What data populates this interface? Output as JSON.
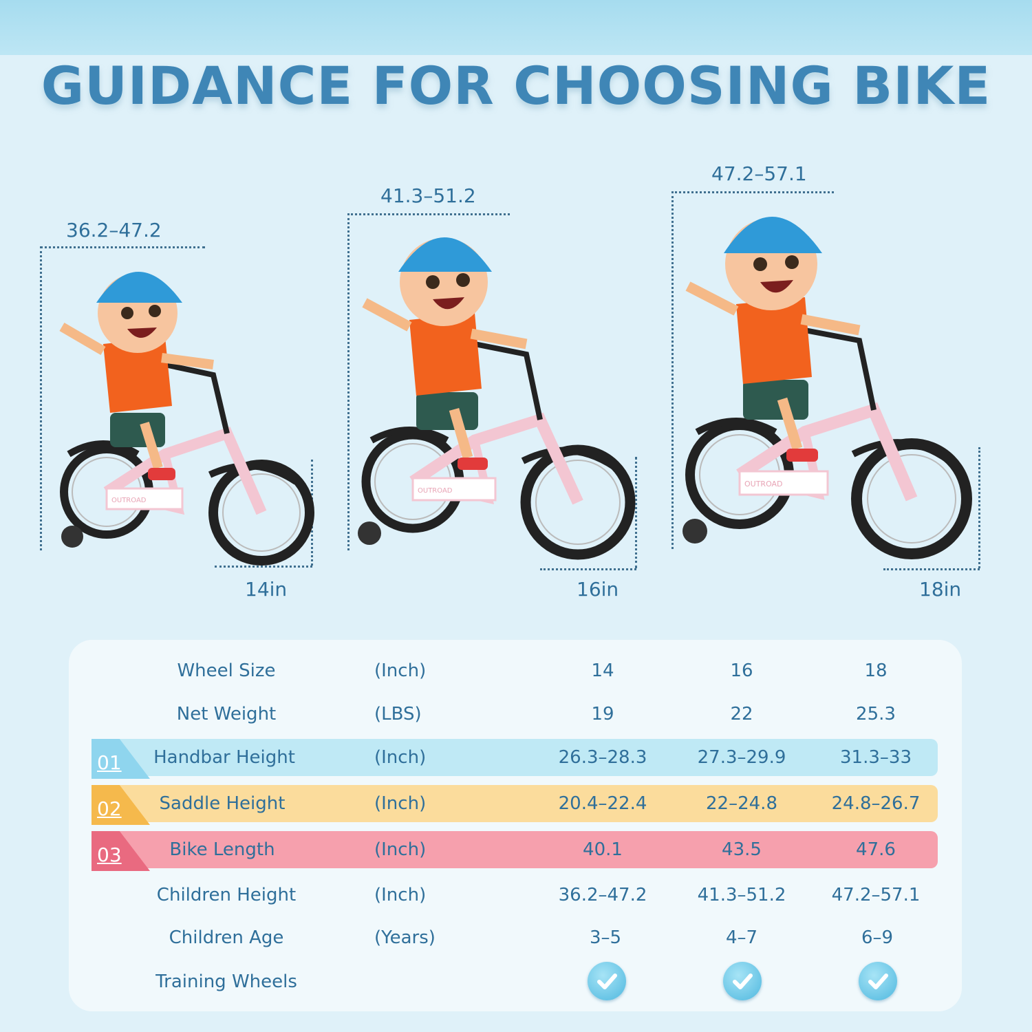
{
  "title": "GUIDANCE FOR CHOOSING BIKE",
  "colors": {
    "accent": "#3f86b6",
    "band_01": "#bfe9f5",
    "band_02": "#fbdc9c",
    "band_03": "#f6a0ad"
  },
  "figures": [
    {
      "height_range": "36.2–47.2",
      "wheel": "14in",
      "brand": "OUTROAD"
    },
    {
      "height_range": "41.3–51.2",
      "wheel": "16in",
      "brand": "OUTROAD"
    },
    {
      "height_range": "47.2–57.1",
      "wheel": "18in",
      "brand": "OUTROAD"
    }
  ],
  "table": {
    "rows": [
      {
        "label": "Wheel Size",
        "unit": "(Inch)",
        "values": [
          "14",
          "16",
          "18"
        ]
      },
      {
        "label": "Net Weight",
        "unit": "(LBS)",
        "values": [
          "19",
          "22",
          "25.3"
        ]
      },
      {
        "label": "Handbar Height",
        "unit": "(Inch)",
        "values": [
          "26.3–28.3",
          "27.3–29.9",
          "31.3–33"
        ],
        "badge": "01"
      },
      {
        "label": "Saddle Height",
        "unit": "(Inch)",
        "values": [
          "20.4–22.4",
          "22–24.8",
          "24.8–26.7"
        ],
        "badge": "02"
      },
      {
        "label": "Bike Length",
        "unit": "(Inch)",
        "values": [
          "40.1",
          "43.5",
          "47.6"
        ],
        "badge": "03"
      },
      {
        "label": "Children Height",
        "unit": "(Inch)",
        "values": [
          "36.2–47.2",
          "41.3–51.2",
          "47.2–57.1"
        ]
      },
      {
        "label": "Children Age",
        "unit": "(Years)",
        "values": [
          "3–5",
          "4–7",
          "6–9"
        ]
      },
      {
        "label": "Training Wheels",
        "unit": "",
        "values": [
          "check-icon",
          "check-icon",
          "check-icon"
        ]
      }
    ]
  }
}
